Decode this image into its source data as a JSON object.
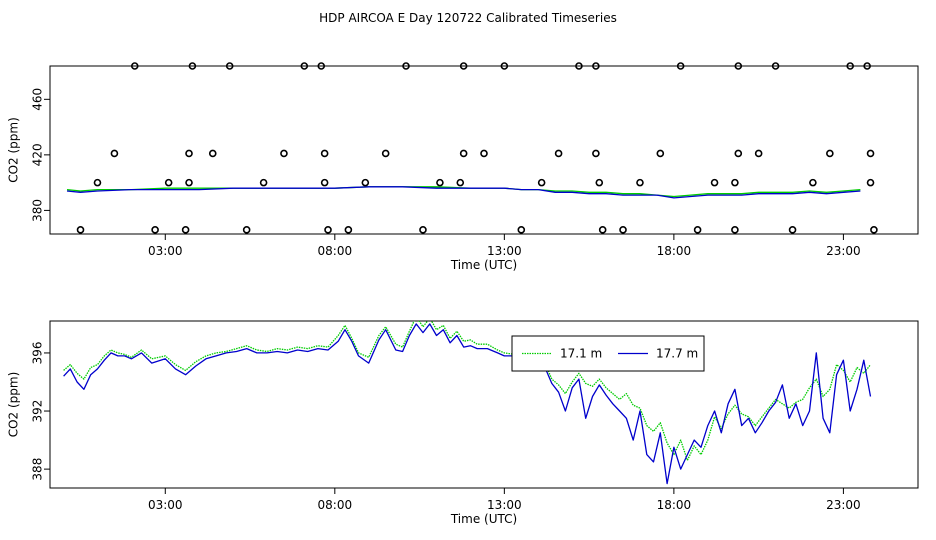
{
  "title": "HDP AIRCOA E  Day 120722  Calibrated Timeseries",
  "colors": {
    "series_1": "#00cc00",
    "series_2": "#0000cc",
    "axis": "#000000"
  },
  "chart_data": [
    {
      "type": "scatter",
      "xlabel": "Time (UTC)",
      "ylabel": "CO2 (ppm)",
      "x_ticks": [
        "03:00",
        "08:00",
        "13:00",
        "18:00",
        "23:00"
      ],
      "x_tick_hours": [
        3,
        8,
        13,
        18,
        23
      ],
      "y_ticks": [
        380,
        420,
        460
      ],
      "xlim_hours": [
        -0.4,
        25.2
      ],
      "ylim": [
        363,
        484
      ],
      "grid": false,
      "markers": {
        "description": "open circles",
        "points": [
          [
            0.5,
            366
          ],
          [
            1.0,
            400
          ],
          [
            1.5,
            421
          ],
          [
            2.1,
            484
          ],
          [
            2.7,
            366
          ],
          [
            3.1,
            400
          ],
          [
            3.6,
            366
          ],
          [
            3.7,
            400
          ],
          [
            3.7,
            421
          ],
          [
            3.8,
            484
          ],
          [
            4.4,
            421
          ],
          [
            4.9,
            484
          ],
          [
            5.4,
            366
          ],
          [
            5.9,
            400
          ],
          [
            6.5,
            421
          ],
          [
            7.1,
            484
          ],
          [
            7.6,
            484
          ],
          [
            7.7,
            421
          ],
          [
            7.7,
            400
          ],
          [
            7.8,
            366
          ],
          [
            8.4,
            366
          ],
          [
            8.9,
            400
          ],
          [
            9.5,
            421
          ],
          [
            10.1,
            484
          ],
          [
            10.6,
            366
          ],
          [
            11.1,
            400
          ],
          [
            11.7,
            400
          ],
          [
            11.8,
            421
          ],
          [
            11.8,
            484
          ],
          [
            12.4,
            421
          ],
          [
            13.0,
            484
          ],
          [
            13.5,
            366
          ],
          [
            14.1,
            400
          ],
          [
            14.6,
            421
          ],
          [
            15.2,
            484
          ],
          [
            15.7,
            484
          ],
          [
            15.7,
            421
          ],
          [
            15.8,
            400
          ],
          [
            15.9,
            366
          ],
          [
            16.5,
            366
          ],
          [
            17.0,
            400
          ],
          [
            17.6,
            421
          ],
          [
            18.2,
            484
          ],
          [
            18.7,
            366
          ],
          [
            19.2,
            400
          ],
          [
            19.8,
            366
          ],
          [
            19.8,
            400
          ],
          [
            19.9,
            421
          ],
          [
            19.9,
            484
          ],
          [
            20.5,
            421
          ],
          [
            21.0,
            484
          ],
          [
            21.5,
            366
          ],
          [
            22.1,
            400
          ],
          [
            22.6,
            421
          ],
          [
            23.2,
            484
          ],
          [
            23.7,
            484
          ],
          [
            23.8,
            421
          ],
          [
            23.8,
            400
          ],
          [
            23.9,
            366
          ]
        ]
      },
      "series": [
        {
          "color": "#00cc00",
          "x": [
            0.1,
            0.5,
            1.0,
            2.0,
            3.0,
            4.0,
            5.0,
            6.0,
            7.0,
            8.0,
            9.0,
            10.0,
            11.0,
            12.0,
            13.0,
            13.5,
            14.0,
            14.5,
            15.0,
            15.5,
            16.0,
            16.5,
            17.0,
            17.5,
            18.0,
            18.5,
            19.0,
            19.5,
            20.0,
            20.5,
            21.0,
            21.5,
            22.0,
            22.5,
            23.0,
            23.5
          ],
          "y": [
            395,
            394,
            395,
            395,
            396,
            396,
            396,
            396,
            396,
            396,
            397,
            397,
            397,
            396,
            396,
            395,
            395,
            394,
            394,
            393,
            393,
            392,
            392,
            391,
            390,
            391,
            392,
            392,
            392,
            393,
            393,
            393,
            394,
            393,
            394,
            395
          ]
        },
        {
          "color": "#0000cc",
          "x": [
            0.1,
            0.5,
            1.0,
            2.0,
            3.0,
            4.0,
            5.0,
            6.0,
            7.0,
            8.0,
            9.0,
            10.0,
            11.0,
            12.0,
            13.0,
            13.5,
            14.0,
            14.5,
            15.0,
            15.5,
            16.0,
            16.5,
            17.0,
            17.5,
            18.0,
            18.5,
            19.0,
            19.5,
            20.0,
            20.5,
            21.0,
            21.5,
            22.0,
            22.5,
            23.0,
            23.5
          ],
          "y": [
            394,
            393,
            394,
            395,
            395,
            395,
            396,
            396,
            396,
            396,
            397,
            397,
            396,
            396,
            396,
            395,
            395,
            393,
            393,
            392,
            392,
            391,
            391,
            391,
            389,
            390,
            391,
            391,
            391,
            392,
            392,
            392,
            393,
            392,
            393,
            394
          ]
        }
      ]
    },
    {
      "type": "line",
      "xlabel": "Time (UTC)",
      "ylabel": "CO2 (ppm)",
      "x_ticks": [
        "03:00",
        "08:00",
        "13:00",
        "18:00",
        "23:00"
      ],
      "x_tick_hours": [
        3,
        8,
        13,
        18,
        23
      ],
      "y_ticks": [
        388,
        392,
        396
      ],
      "xlim_hours": [
        -0.4,
        25.2
      ],
      "ylim": [
        386.7,
        398.2
      ],
      "grid": false,
      "legend": {
        "placement": "top-center",
        "entries": [
          "17.1 m",
          "17.7 m"
        ]
      },
      "series": [
        {
          "name": "17.1 m",
          "color": "#00cc00",
          "dash": "dotted",
          "x": [
            0.0,
            0.2,
            0.4,
            0.6,
            0.8,
            1.0,
            1.2,
            1.4,
            1.6,
            1.8,
            2.0,
            2.3,
            2.6,
            3.0,
            3.3,
            3.6,
            3.9,
            4.2,
            4.5,
            4.8,
            5.1,
            5.4,
            5.7,
            6.0,
            6.3,
            6.6,
            6.9,
            7.2,
            7.5,
            7.8,
            8.1,
            8.3,
            8.5,
            8.7,
            9.0,
            9.3,
            9.5,
            9.8,
            10.0,
            10.2,
            10.4,
            10.6,
            10.8,
            11.0,
            11.2,
            11.4,
            11.6,
            11.8,
            12.0,
            12.2,
            12.5,
            12.8,
            13.0,
            13.3,
            13.6,
            13.9,
            14.2,
            14.4,
            14.6,
            14.8,
            15.0,
            15.2,
            15.4,
            15.6,
            15.8,
            16.0,
            16.2,
            16.4,
            16.6,
            16.8,
            17.0,
            17.2,
            17.4,
            17.6,
            17.8,
            18.0,
            18.2,
            18.4,
            18.6,
            18.8,
            19.0,
            19.2,
            19.4,
            19.6,
            19.8,
            20.0,
            20.2,
            20.4,
            20.6,
            20.8,
            21.0,
            21.2,
            21.4,
            21.6,
            21.8,
            22.0,
            22.2,
            22.4,
            22.6,
            22.8,
            23.0,
            23.2,
            23.4,
            23.6,
            23.8
          ],
          "y": [
            394.8,
            395.2,
            394.6,
            394.2,
            395.0,
            395.2,
            395.8,
            396.2,
            396.0,
            395.9,
            395.7,
            396.2,
            395.6,
            395.8,
            395.2,
            394.8,
            395.4,
            395.8,
            396.0,
            396.1,
            396.3,
            396.5,
            396.2,
            396.1,
            396.3,
            396.2,
            396.4,
            396.3,
            396.5,
            396.4,
            397.2,
            397.9,
            397.0,
            396.0,
            395.7,
            397.2,
            397.8,
            396.6,
            396.4,
            397.5,
            398.5,
            397.8,
            398.4,
            397.6,
            397.9,
            397.0,
            397.5,
            396.8,
            396.9,
            396.6,
            396.6,
            396.2,
            396.0,
            395.9,
            396.0,
            395.6,
            395.3,
            394.2,
            393.8,
            393.2,
            394.0,
            394.6,
            393.9,
            393.7,
            394.2,
            393.6,
            393.2,
            392.8,
            393.2,
            392.4,
            392.2,
            391.0,
            390.6,
            391.2,
            389.8,
            389.0,
            390.0,
            388.6,
            389.6,
            389.0,
            390.0,
            391.6,
            390.8,
            391.8,
            392.4,
            391.8,
            391.6,
            391.0,
            391.6,
            392.2,
            392.8,
            392.5,
            392.2,
            392.6,
            392.8,
            393.6,
            394.2,
            393.0,
            393.5,
            395.2,
            394.8,
            394.0,
            395.0,
            394.6,
            395.2
          ]
        },
        {
          "name": "17.7 m",
          "color": "#0000cc",
          "dash": "solid",
          "x": [
            0.0,
            0.2,
            0.4,
            0.6,
            0.8,
            1.0,
            1.2,
            1.4,
            1.6,
            1.8,
            2.0,
            2.3,
            2.6,
            3.0,
            3.3,
            3.6,
            3.9,
            4.2,
            4.5,
            4.8,
            5.1,
            5.4,
            5.7,
            6.0,
            6.3,
            6.6,
            6.9,
            7.2,
            7.5,
            7.8,
            8.1,
            8.3,
            8.5,
            8.7,
            9.0,
            9.3,
            9.5,
            9.8,
            10.0,
            10.2,
            10.4,
            10.6,
            10.8,
            11.0,
            11.2,
            11.4,
            11.6,
            11.8,
            12.0,
            12.2,
            12.5,
            12.8,
            13.0,
            13.3,
            13.6,
            13.9,
            14.2,
            14.4,
            14.6,
            14.8,
            15.0,
            15.2,
            15.4,
            15.6,
            15.8,
            16.0,
            16.2,
            16.4,
            16.6,
            16.8,
            17.0,
            17.2,
            17.4,
            17.6,
            17.8,
            18.0,
            18.2,
            18.4,
            18.6,
            18.8,
            19.0,
            19.2,
            19.4,
            19.6,
            19.8,
            20.0,
            20.2,
            20.4,
            20.6,
            20.8,
            21.0,
            21.2,
            21.4,
            21.6,
            21.8,
            22.0,
            22.2,
            22.4,
            22.6,
            22.8,
            23.0,
            23.2,
            23.4,
            23.6,
            23.8
          ],
          "y": [
            394.4,
            394.9,
            394.0,
            393.5,
            394.5,
            394.9,
            395.5,
            396.0,
            395.8,
            395.8,
            395.6,
            396.0,
            395.3,
            395.6,
            394.9,
            394.5,
            395.1,
            395.6,
            395.8,
            396.0,
            396.1,
            396.3,
            396.0,
            396.0,
            396.1,
            396.0,
            396.2,
            396.1,
            396.3,
            396.2,
            396.8,
            397.6,
            396.8,
            395.8,
            395.3,
            396.9,
            397.6,
            396.2,
            396.1,
            397.2,
            398.0,
            397.4,
            398.0,
            397.2,
            397.6,
            396.7,
            397.2,
            396.4,
            396.5,
            396.3,
            396.3,
            396.0,
            395.8,
            395.8,
            395.8,
            395.4,
            395.0,
            393.9,
            393.3,
            392.0,
            393.6,
            394.2,
            391.5,
            393.0,
            393.8,
            393.1,
            392.5,
            392.0,
            391.5,
            390.0,
            392.0,
            389.0,
            388.5,
            390.5,
            387.0,
            389.5,
            388.0,
            389.0,
            390.0,
            389.5,
            391.0,
            392.0,
            390.5,
            392.5,
            393.5,
            391.0,
            391.5,
            390.5,
            391.2,
            392.0,
            392.6,
            393.8,
            391.5,
            392.5,
            391.0,
            392.0,
            396.0,
            391.5,
            390.5,
            394.5,
            395.5,
            392.0,
            393.5,
            395.5,
            393.0
          ]
        }
      ]
    }
  ]
}
